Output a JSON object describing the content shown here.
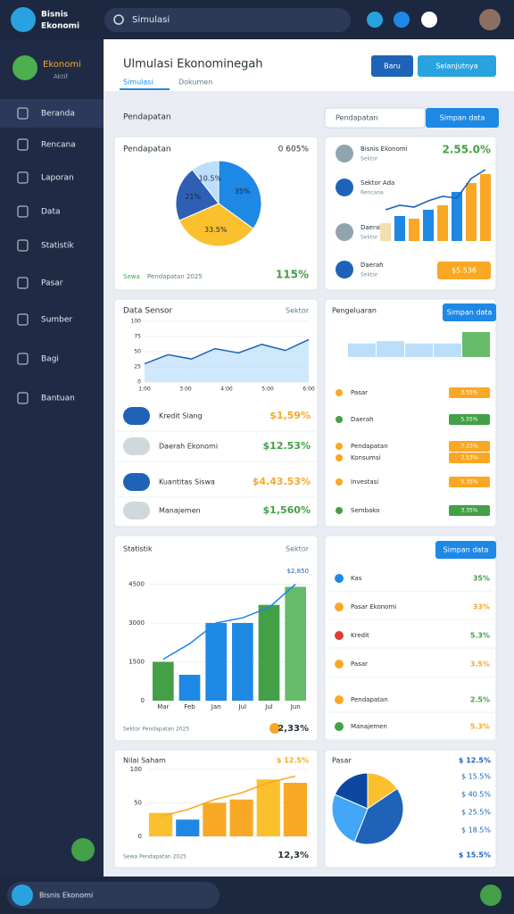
{
  "header": {
    "brand": [
      "Bisnis",
      "Ekonomi"
    ],
    "search": "Simulasi"
  },
  "user": {
    "name": "Ekonomi",
    "status": "Aktif"
  },
  "menu": [
    "Beranda",
    "Rencana",
    "Laporan",
    "Data",
    "Statistik",
    "Pasar",
    "Sumber",
    "Bagi",
    "Bantuan"
  ],
  "page": {
    "title": "Ulmulasi Ekonominegah",
    "buttons": [
      "Baru",
      "Selanjutnya"
    ],
    "tabs": [
      "Simulasi",
      "Dokumen"
    ]
  },
  "filter": {
    "label": "Pendapatan",
    "select": "Pendapatan",
    "button": "Simpan data"
  },
  "pie_panel": {
    "title": "Pendapatan",
    "total": "0 605%",
    "slices": [
      {
        "label": "35%",
        "value": 35,
        "color": "#1e88e5"
      },
      {
        "label": "33.5%",
        "value": 33.5,
        "color": "#fbc02d"
      },
      {
        "label": "21%",
        "value": 21,
        "color": "#2f5fb3"
      },
      {
        "label": "10.5%",
        "value": 10.5,
        "color": "#bbdefb"
      }
    ],
    "legend": "Sewa",
    "note": "Pendapatan 2025",
    "result": "115%"
  },
  "trend_panel": {
    "value": "2.55.0%",
    "people": [
      {
        "name": "Bisnis Ekonomi",
        "role": "Sektor"
      },
      {
        "name": "Sektor Ada",
        "role": "Rencana"
      },
      {
        "name": "Daerah",
        "role": "Sektor"
      },
      {
        "name": "Daerah",
        "role": "Sektor"
      }
    ],
    "bars": [
      20,
      28,
      25,
      35,
      40,
      55,
      65,
      75
    ],
    "bar_colors": [
      "#f3e0b0",
      "#1e88e5",
      "#f9a825",
      "#1e88e5",
      "#f9a825",
      "#1e88e5",
      "#f9a825",
      "#f9a825"
    ],
    "line": [
      35,
      40,
      38,
      45,
      50,
      48,
      70,
      80
    ],
    "button": "$5.536"
  },
  "area_panel": {
    "title": "Data Sensor",
    "right": "Sektor",
    "values": [
      30,
      45,
      38,
      55,
      48,
      62,
      52,
      70
    ],
    "ylim": [
      0,
      100
    ],
    "yticks": [
      0,
      25,
      50,
      75,
      100
    ],
    "xlabels": [
      "1:00",
      "3:00",
      "4:00",
      "5:00",
      "6:00"
    ],
    "rows": [
      {
        "name": "Kredit Siang",
        "value": "$1,59%"
      },
      {
        "name": "Daerah Ekonomi",
        "value": "$12.53%"
      },
      {
        "name": "Kuantitas Siswa",
        "value": "$4.43.53%"
      },
      {
        "name": "Manajemen",
        "value": "$1,560%"
      }
    ]
  },
  "expense_panel": {
    "title": "Pengeluaran",
    "button": "Simpan data",
    "values": [
      30,
      35,
      30,
      30,
      55
    ],
    "rows": [
      {
        "name": "Pasar",
        "badge": "3.55%",
        "color": "#f9a825"
      },
      {
        "name": "Daerah",
        "badge": "5.55%",
        "color": "#43a047"
      },
      {
        "name": "Pendapatan",
        "badge": "7.33%",
        "color": "#f9a825"
      },
      {
        "name": "Konsumsi",
        "badge": "2.53%",
        "color": "#f9a825"
      },
      {
        "name": "Investasi",
        "badge": "5.35%",
        "color": "#f9a825"
      },
      {
        "name": "Sembako",
        "badge": "3.35%",
        "color": "#43a047"
      }
    ]
  },
  "stat_panel": {
    "title": "Statistik",
    "right": "Sektor",
    "ylim": [
      0,
      5000
    ],
    "yticks": [
      0,
      1500,
      3000,
      4500
    ],
    "categories": [
      "Mar",
      "Feb",
      "Jan",
      "Jul",
      "Jul",
      "Jun"
    ],
    "bars": [
      1500,
      1000,
      3000,
      3000,
      3700,
      4400
    ],
    "bar_colors": [
      "#43a047",
      "#1e88e5",
      "#1e88e5",
      "#1e88e5",
      "#43a047",
      "#66bb6a"
    ],
    "line": [
      1600,
      2200,
      3000,
      3200,
      3600,
      4500
    ],
    "label": "$2,850",
    "footer": "Sektor Pendapatan 2025",
    "result": "2,33%"
  },
  "rate_panel": {
    "button": "Simpan data",
    "rows": [
      {
        "name": "Kas",
        "value": "35%"
      },
      {
        "name": "Pasar Ekonomi",
        "value": "33%"
      },
      {
        "name": "Kredit",
        "value": "5.3%"
      },
      {
        "name": "Pasar",
        "value": "3.5%"
      },
      {
        "name": "Pendapatan",
        "value": "2.5%"
      },
      {
        "name": "Manajemen",
        "value": "5.3%"
      }
    ]
  },
  "stock_panel": {
    "title": "Nilai Saham",
    "top": "$ 12.5%",
    "ylim": [
      0,
      100
    ],
    "yticks": [
      0,
      50,
      100
    ],
    "bars": [
      35,
      25,
      50,
      55,
      85,
      80
    ],
    "bar_colors": [
      "#fbc02d",
      "#1e88e5",
      "#f9a825",
      "#f9a825",
      "#fbc02d",
      "#f9a825"
    ],
    "line": [
      30,
      40,
      55,
      65,
      80,
      90
    ],
    "footer": "Sewa Pendapatan 2025",
    "result": "12,3%"
  },
  "market_panel": {
    "title": "Pasar",
    "top": "$ 12.5%",
    "slices": [
      {
        "label": "$ 15.5%",
        "value": 15.5,
        "color": "#fbc02d"
      },
      {
        "label": "$ 40.5%",
        "value": 40.5,
        "color": "#1e63b8"
      },
      {
        "label": "$ 25.5%",
        "value": 25.5,
        "color": "#42a5f5"
      },
      {
        "label": "$ 18.5%",
        "value": 18.5,
        "color": "#0d47a1"
      }
    ],
    "result": "$ 15.5%"
  },
  "footer": {
    "text": "Bisnis Ekonomi"
  }
}
